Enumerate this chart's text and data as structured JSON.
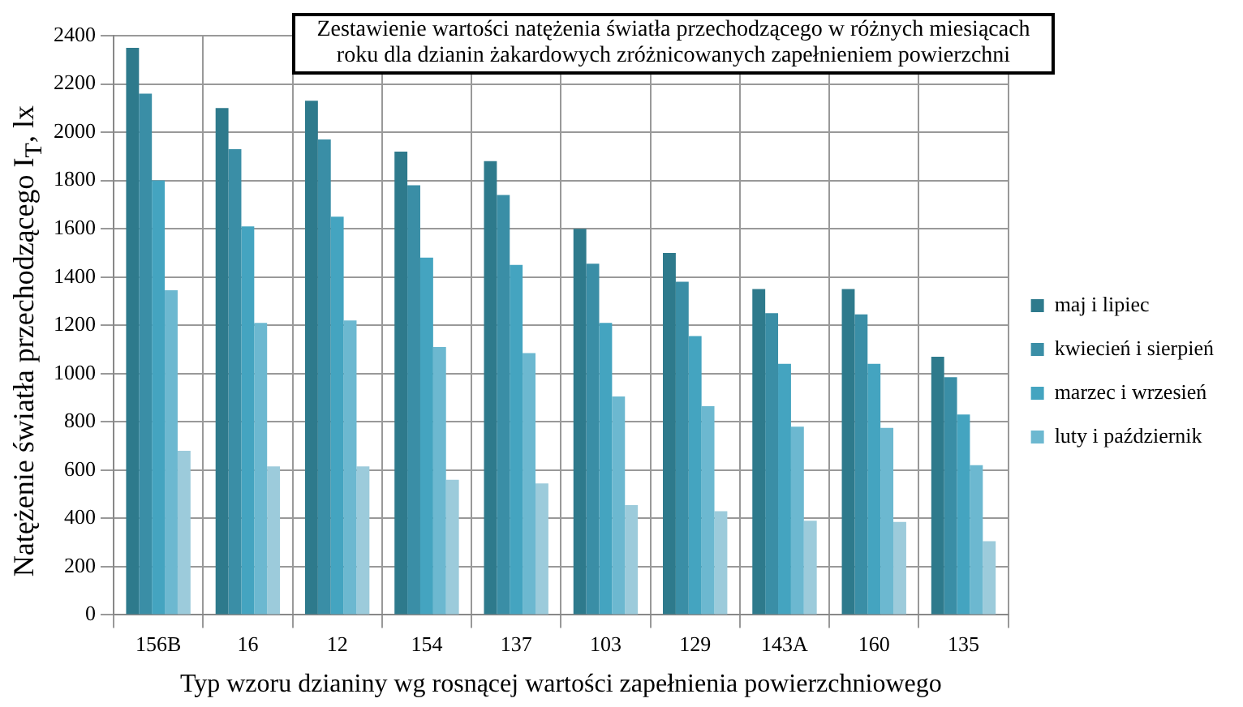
{
  "chart_data": {
    "type": "bar",
    "title": "Zestawienie wartości natężenia światła przechodzącego w różnych miesiącach roku dla dzianin żakardowych zróżnicowanych zapełnieniem powierzchni",
    "xlabel": "Typ wzoru dzianiny wg rosnącej wartości zapełnienia powierzchniowego",
    "ylabel": "Natężenie światła przechodzącego I$_{T}$, lx",
    "categories": [
      "156B",
      "16",
      "12",
      "154",
      "137",
      "103",
      "129",
      "143A",
      "160",
      "135"
    ],
    "series": [
      {
        "name": "maj i lipiec",
        "color": "#2e7a8c",
        "values": [
          2350,
          2100,
          2130,
          1920,
          1880,
          1600,
          1500,
          1350,
          1350,
          1070
        ]
      },
      {
        "name": "kwiecień i sierpień",
        "color": "#3a8ea6",
        "values": [
          2160,
          1930,
          1970,
          1780,
          1740,
          1455,
          1380,
          1250,
          1245,
          985
        ]
      },
      {
        "name": "marzec i wrzesień",
        "color": "#44a4c0",
        "values": [
          1800,
          1610,
          1650,
          1480,
          1450,
          1210,
          1155,
          1040,
          1040,
          830
        ]
      },
      {
        "name": "luty i październik",
        "color": "#6cb8d0",
        "values": [
          1345,
          1210,
          1220,
          1110,
          1085,
          905,
          865,
          780,
          775,
          620
        ]
      },
      {
        "color": "#9ccbdb",
        "values": [
          680,
          615,
          615,
          560,
          545,
          455,
          430,
          390,
          385,
          305
        ]
      }
    ],
    "ylim": [
      0,
      2400
    ],
    "yticks": [
      0,
      200,
      400,
      600,
      800,
      1000,
      1200,
      1400,
      1600,
      1800,
      2000,
      2200,
      2400
    ],
    "grid": true,
    "legend": "right"
  }
}
